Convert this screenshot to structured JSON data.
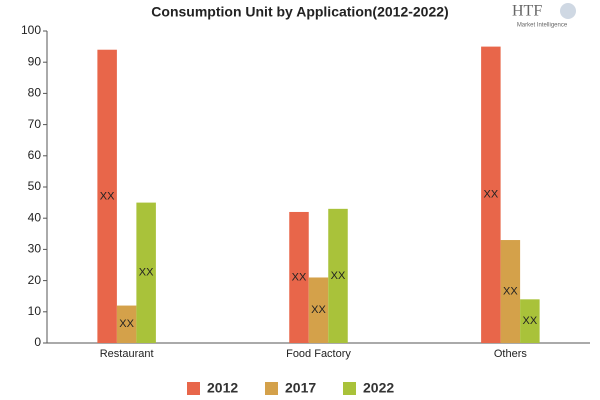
{
  "chart_data": {
    "type": "bar",
    "title": "Consumption Unit by  Application(2012-2022)",
    "categories": [
      "Restaurant",
      "Food Factory",
      "Others"
    ],
    "series": [
      {
        "name": "2012",
        "color": "#e8664a",
        "values": [
          94,
          42,
          95
        ],
        "value_labels": [
          "XX",
          "XX",
          "XX"
        ]
      },
      {
        "name": "2017",
        "color": "#d4a14a",
        "values": [
          12,
          21,
          33
        ],
        "value_labels": [
          "XX",
          "XX",
          "XX"
        ]
      },
      {
        "name": "2022",
        "color": "#a9c23a",
        "values": [
          45,
          43,
          14
        ],
        "value_labels": [
          "XX",
          "XX",
          "XX"
        ]
      }
    ],
    "ylim": [
      0,
      100
    ],
    "yticks": [
      0,
      10,
      20,
      30,
      40,
      50,
      60,
      70,
      80,
      90,
      100
    ],
    "grid": false,
    "legend": "bottom"
  },
  "logo": {
    "text": "HTF",
    "subtext": "Market Intelligence"
  }
}
